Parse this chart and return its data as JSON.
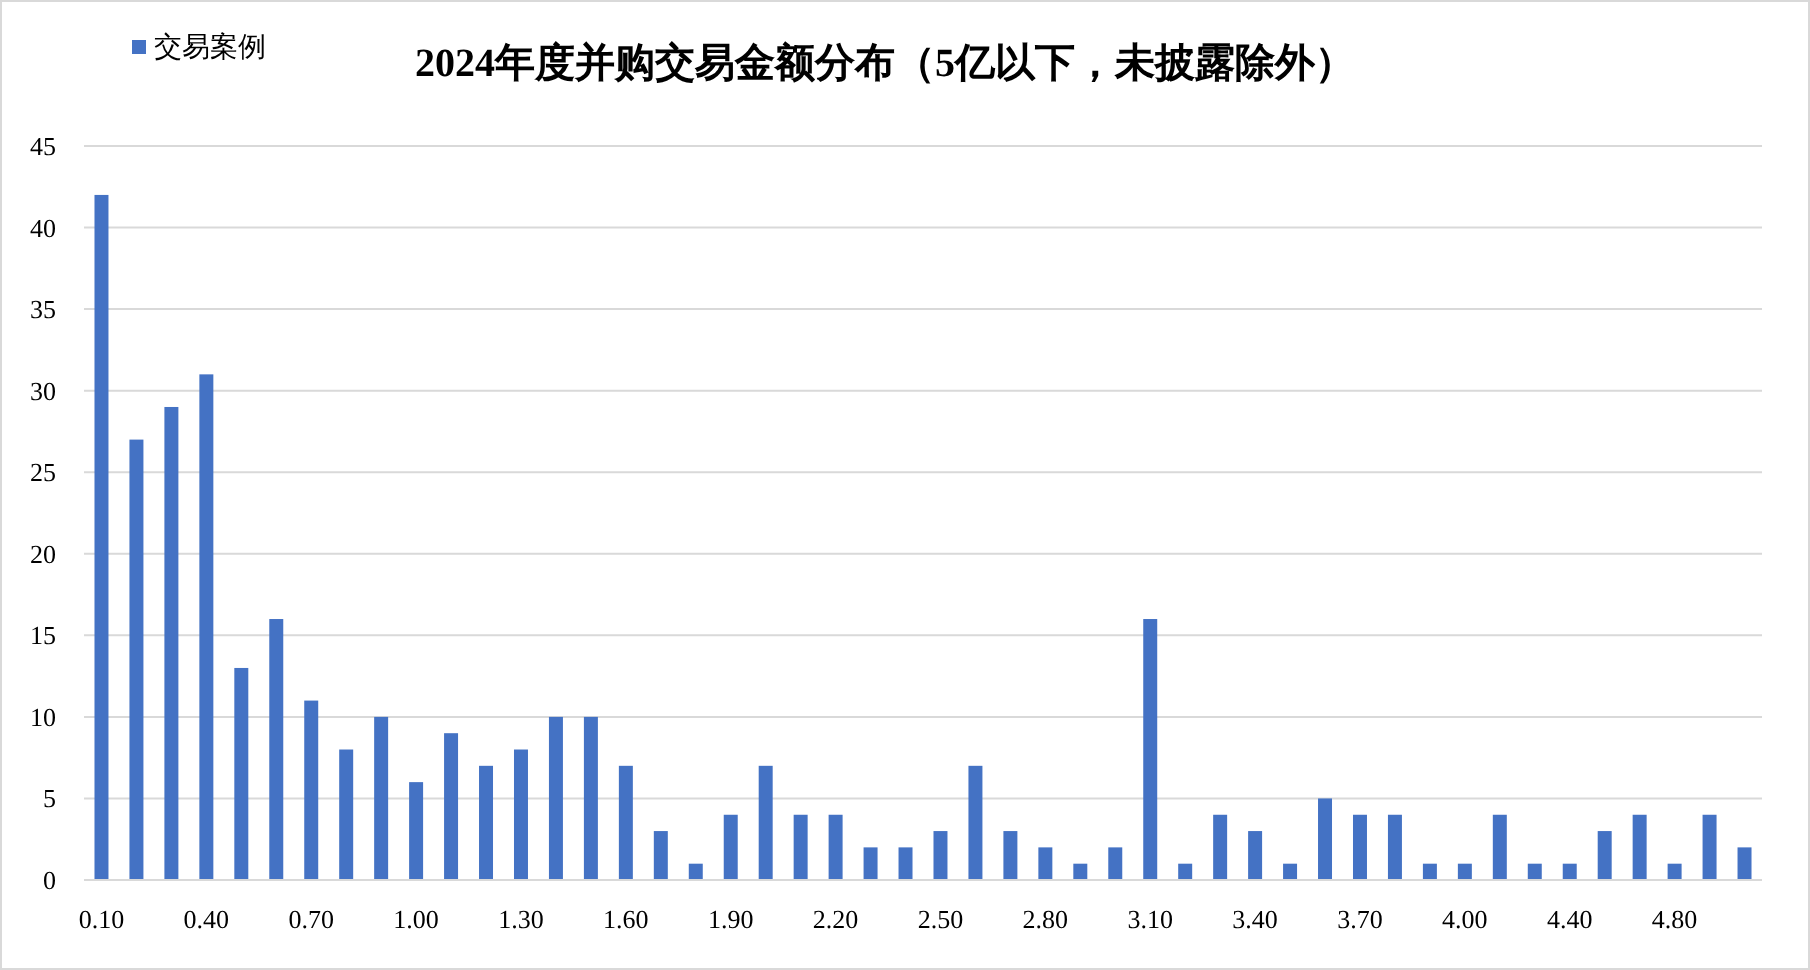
{
  "chart_data": {
    "type": "bar",
    "title": "2024年度并购交易金额分布（5亿以下，未披露除外）",
    "categories": [
      "0.10",
      null,
      null,
      "0.40",
      null,
      null,
      "0.70",
      null,
      null,
      "1.00",
      null,
      null,
      "1.30",
      null,
      null,
      "1.60",
      null,
      null,
      "1.90",
      null,
      null,
      "2.20",
      null,
      null,
      "2.50",
      null,
      null,
      "2.80",
      null,
      null,
      "3.10",
      null,
      null,
      "3.40",
      null,
      null,
      "3.70",
      null,
      null,
      "4.00",
      null,
      null,
      "4.40",
      null,
      null,
      "4.80",
      null,
      null
    ],
    "series": [
      {
        "name": "交易案例",
        "color": "#4472c4",
        "values": [
          42,
          27,
          29,
          31,
          13,
          16,
          11,
          8,
          10,
          6,
          9,
          7,
          8,
          10,
          10,
          7,
          3,
          1,
          4,
          7,
          4,
          4,
          2,
          2,
          3,
          7,
          3,
          2,
          1,
          2,
          16,
          1,
          4,
          3,
          1,
          5,
          4,
          4,
          1,
          1,
          4,
          1,
          1,
          3,
          4,
          1,
          4,
          2
        ]
      }
    ],
    "ylim": [
      0,
      45
    ],
    "yticks": [
      0,
      5,
      10,
      15,
      20,
      25,
      30,
      35,
      40,
      45
    ],
    "grid": "y",
    "legend": "top left"
  }
}
